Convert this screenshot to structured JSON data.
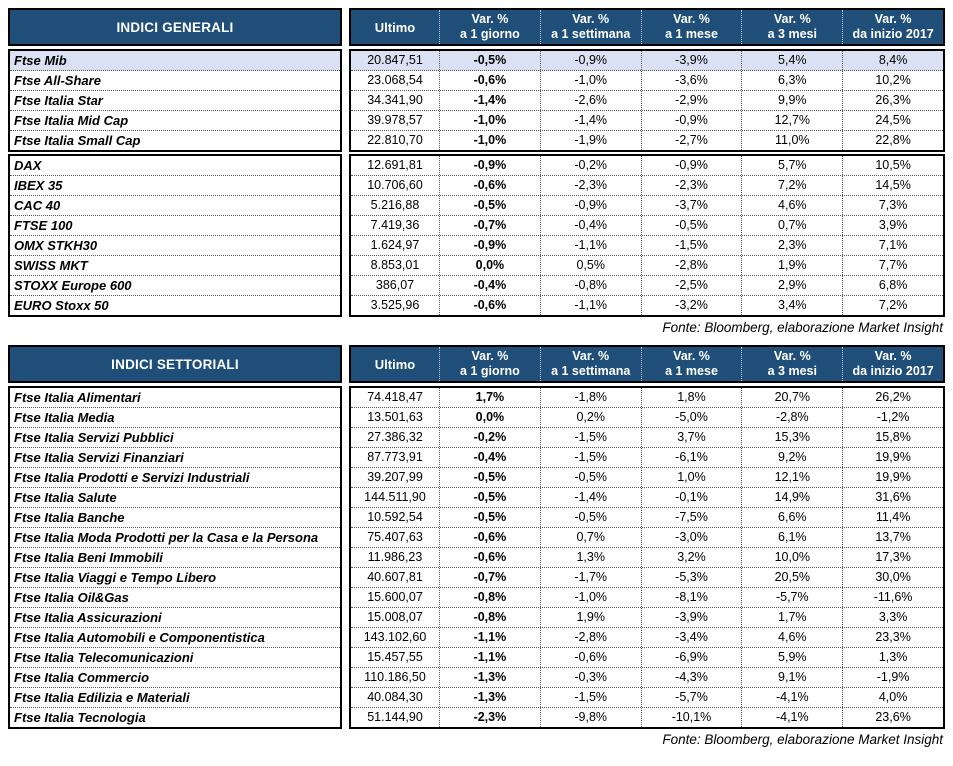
{
  "colors": {
    "header_bg": "#1F4E79",
    "header_text": "#FFFFFF",
    "highlight_row_bg": "#D9E1F2",
    "border": "#000000",
    "body_text": "#000000"
  },
  "tables": [
    {
      "title": "INDICI GENERALI",
      "columns": {
        "ultimo": "Ultimo",
        "var": [
          [
            "Var. %",
            "a 1 giorno"
          ],
          [
            "Var. %",
            "a 1 settimana"
          ],
          [
            "Var. %",
            "a 1 mese"
          ],
          [
            "Var. %",
            "a 3 mesi"
          ],
          [
            "Var. %",
            "da inizio 2017"
          ]
        ]
      },
      "groups": [
        {
          "rows": [
            {
              "name": "Ftse Mib",
              "ultimo": "20.847,51",
              "values": [
                "-0,5%",
                "-0,9%",
                "-3,9%",
                "5,4%",
                "8,4%"
              ],
              "highlight": true
            },
            {
              "name": "Ftse All-Share",
              "ultimo": "23.068,54",
              "values": [
                "-0,6%",
                "-1,0%",
                "-3,6%",
                "6,3%",
                "10,2%"
              ],
              "highlight": false
            },
            {
              "name": "Ftse Italia Star",
              "ultimo": "34.341,90",
              "values": [
                "-1,4%",
                "-2,6%",
                "-2,9%",
                "9,9%",
                "26,3%"
              ],
              "highlight": false
            },
            {
              "name": "Ftse Italia Mid Cap",
              "ultimo": "39.978,57",
              "values": [
                "-1,0%",
                "-1,4%",
                "-0,9%",
                "12,7%",
                "24,5%"
              ],
              "highlight": false
            },
            {
              "name": "Ftse Italia Small Cap",
              "ultimo": "22.810,70",
              "values": [
                "-1,0%",
                "-1,9%",
                "-2,7%",
                "11,0%",
                "22,8%"
              ],
              "highlight": false
            }
          ]
        },
        {
          "rows": [
            {
              "name": "DAX",
              "ultimo": "12.691,81",
              "values": [
                "-0,9%",
                "-0,2%",
                "-0,9%",
                "5,7%",
                "10,5%"
              ],
              "highlight": false
            },
            {
              "name": "IBEX 35",
              "ultimo": "10.706,60",
              "values": [
                "-0,6%",
                "-2,3%",
                "-2,3%",
                "7,2%",
                "14,5%"
              ],
              "highlight": false
            },
            {
              "name": "CAC 40",
              "ultimo": "5.216,88",
              "values": [
                "-0,5%",
                "-0,9%",
                "-3,7%",
                "4,6%",
                "7,3%"
              ],
              "highlight": false
            },
            {
              "name": "FTSE 100",
              "ultimo": "7.419,36",
              "values": [
                "-0,7%",
                "-0,4%",
                "-0,5%",
                "0,7%",
                "3,9%"
              ],
              "highlight": false
            },
            {
              "name": "OMX STKH30",
              "ultimo": "1.624,97",
              "values": [
                "-0,9%",
                "-1,1%",
                "-1,5%",
                "2,3%",
                "7,1%"
              ],
              "highlight": false
            },
            {
              "name": "SWISS MKT",
              "ultimo": "8.853,01",
              "values": [
                "0,0%",
                "0,5%",
                "-2,8%",
                "1,9%",
                "7,7%"
              ],
              "highlight": false
            },
            {
              "name": "STOXX Europe 600",
              "ultimo": "386,07",
              "values": [
                "-0,4%",
                "-0,8%",
                "-2,5%",
                "2,9%",
                "6,8%"
              ],
              "highlight": false
            },
            {
              "name": "EURO Stoxx 50",
              "ultimo": "3.525,96",
              "values": [
                "-0,6%",
                "-1,1%",
                "-3,2%",
                "3,4%",
                "7,2%"
              ],
              "highlight": false
            }
          ]
        }
      ],
      "source": "Fonte: Bloomberg, elaborazione Market Insight"
    },
    {
      "title": "INDICI SETTORIALI",
      "columns": {
        "ultimo": "Ultimo",
        "var": [
          [
            "Var. %",
            "a 1 giorno"
          ],
          [
            "Var. %",
            "a 1 settimana"
          ],
          [
            "Var. %",
            "a 1 mese"
          ],
          [
            "Var. %",
            "a 3 mesi"
          ],
          [
            "Var. %",
            "da inizio 2017"
          ]
        ]
      },
      "groups": [
        {
          "rows": [
            {
              "name": "Ftse Italia Alimentari",
              "ultimo": "74.418,47",
              "values": [
                "1,7%",
                "-1,8%",
                "1,8%",
                "20,7%",
                "26,2%"
              ],
              "highlight": false
            },
            {
              "name": "Ftse Italia Media",
              "ultimo": "13.501,63",
              "values": [
                "0,0%",
                "0,2%",
                "-5,0%",
                "-2,8%",
                "-1,2%"
              ],
              "highlight": false
            },
            {
              "name": "Ftse Italia Servizi Pubblici",
              "ultimo": "27.386,32",
              "values": [
                "-0,2%",
                "-1,5%",
                "3,7%",
                "15,3%",
                "15,8%"
              ],
              "highlight": false
            },
            {
              "name": "Ftse Italia Servizi Finanziari",
              "ultimo": "87.773,91",
              "values": [
                "-0,4%",
                "-1,5%",
                "-6,1%",
                "9,2%",
                "19,9%"
              ],
              "highlight": false
            },
            {
              "name": "Ftse Italia Prodotti e Servizi Industriali",
              "ultimo": "39.207,99",
              "values": [
                "-0,5%",
                "-0,5%",
                "1,0%",
                "12,1%",
                "19,9%"
              ],
              "highlight": false
            },
            {
              "name": "Ftse Italia Salute",
              "ultimo": "144.511,90",
              "values": [
                "-0,5%",
                "-1,4%",
                "-0,1%",
                "14,9%",
                "31,6%"
              ],
              "highlight": false
            },
            {
              "name": "Ftse Italia Banche",
              "ultimo": "10.592,54",
              "values": [
                "-0,5%",
                "-0,5%",
                "-7,5%",
                "6,6%",
                "11,4%"
              ],
              "highlight": false
            },
            {
              "name": "Ftse Italia Moda Prodotti per la Casa e la Persona",
              "ultimo": "75.407,63",
              "values": [
                "-0,6%",
                "0,7%",
                "-3,0%",
                "6,1%",
                "13,7%"
              ],
              "highlight": false
            },
            {
              "name": "Ftse Italia Beni Immobili",
              "ultimo": "11.986,23",
              "values": [
                "-0,6%",
                "1,3%",
                "3,2%",
                "10,0%",
                "17,3%"
              ],
              "highlight": false
            },
            {
              "name": "Ftse Italia Viaggi e Tempo Libero",
              "ultimo": "40.607,81",
              "values": [
                "-0,7%",
                "-1,7%",
                "-5,3%",
                "20,5%",
                "30,0%"
              ],
              "highlight": false
            },
            {
              "name": "Ftse Italia Oil&Gas",
              "ultimo": "15.600,07",
              "values": [
                "-0,8%",
                "-1,0%",
                "-8,1%",
                "-5,7%",
                "-11,6%"
              ],
              "highlight": false
            },
            {
              "name": "Ftse Italia Assicurazioni",
              "ultimo": "15.008,07",
              "values": [
                "-0,8%",
                "1,9%",
                "-3,9%",
                "1,7%",
                "3,3%"
              ],
              "highlight": false
            },
            {
              "name": "Ftse Italia Automobili e Componentistica",
              "ultimo": "143.102,60",
              "values": [
                "-1,1%",
                "-2,8%",
                "-3,4%",
                "4,6%",
                "23,3%"
              ],
              "highlight": false
            },
            {
              "name": "Ftse Italia Telecomunicazioni",
              "ultimo": "15.457,55",
              "values": [
                "-1,1%",
                "-0,6%",
                "-6,9%",
                "5,9%",
                "1,3%"
              ],
              "highlight": false
            },
            {
              "name": "Ftse Italia Commercio",
              "ultimo": "110.186,50",
              "values": [
                "-1,3%",
                "-0,3%",
                "-4,3%",
                "9,1%",
                "-1,9%"
              ],
              "highlight": false
            },
            {
              "name": "Ftse Italia Edilizia e Materiali",
              "ultimo": "40.084,30",
              "values": [
                "-1,3%",
                "-1,5%",
                "-5,7%",
                "-4,1%",
                "4,0%"
              ],
              "highlight": false
            },
            {
              "name": "Ftse Italia Tecnologia",
              "ultimo": "51.144,90",
              "values": [
                "-2,3%",
                "-9,8%",
                "-10,1%",
                "-4,1%",
                "23,6%"
              ],
              "highlight": false
            }
          ]
        }
      ],
      "source": "Fonte: Bloomberg, elaborazione Market Insight"
    }
  ]
}
